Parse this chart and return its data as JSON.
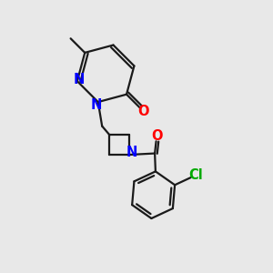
{
  "bg_color": "#e8e8e8",
  "bond_color": "#1a1a1a",
  "N_color": "#0000ff",
  "O_color": "#ff0000",
  "Cl_color": "#00aa00",
  "line_width": 1.6,
  "font_size": 10.5,
  "fig_w": 3.0,
  "fig_h": 3.0,
  "dpi": 100,
  "xlim": [
    0,
    10
  ],
  "ylim": [
    0,
    10
  ]
}
